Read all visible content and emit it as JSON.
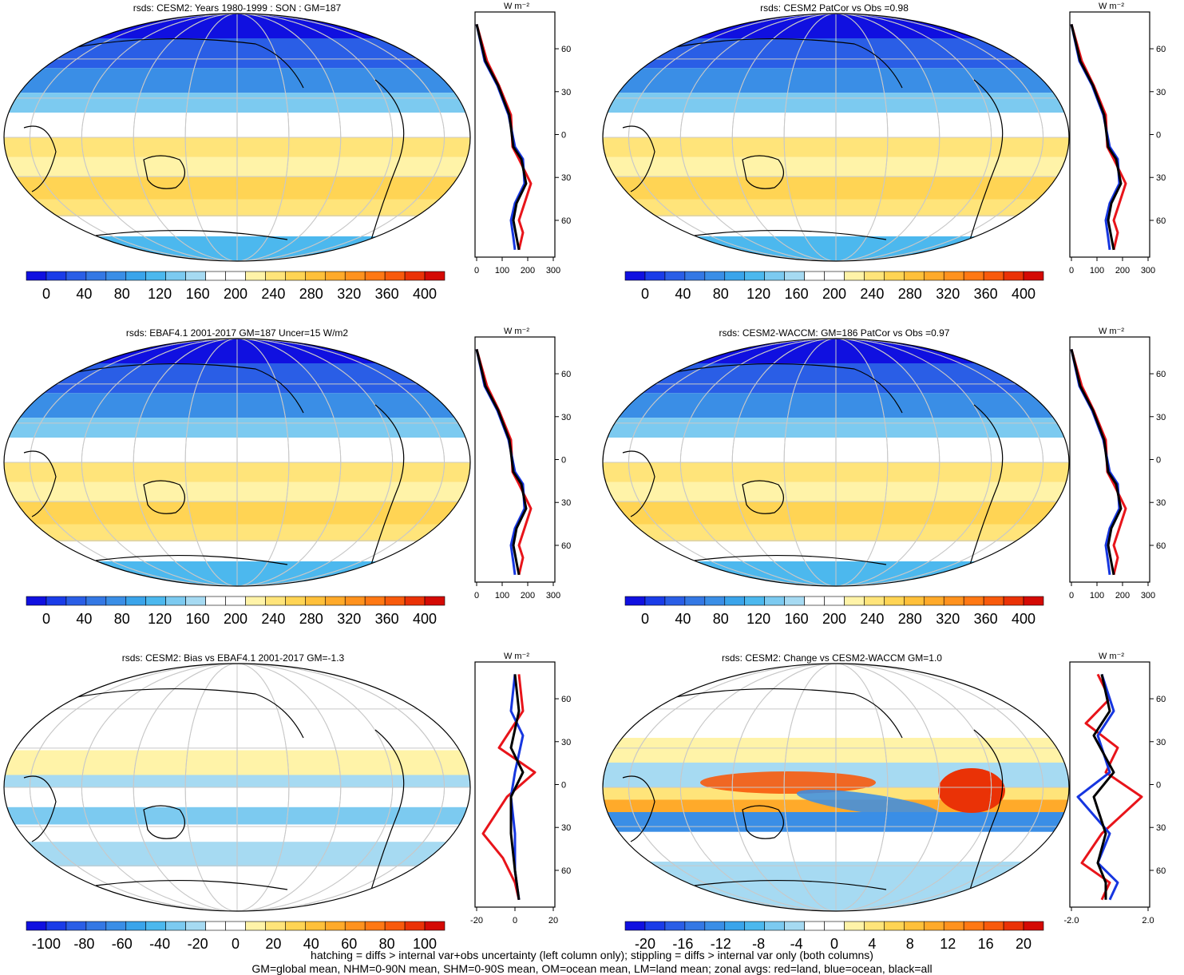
{
  "footer": {
    "line1": "hatching = diffs > internal var+obs uncertainty (left column only); stippling = diffs > internal var only (both columns)",
    "line2": "GM=global mean, NHM=0-90N mean, SHM=0-90S mean, OM=ocean mean, LM=land mean; zonal avgs: red=land, blue=ocean, black=all"
  },
  "zonal_axis": {
    "units": "W m⁻²",
    "lat_labels": [
      "60N",
      "30N",
      "0",
      "30S",
      "60S"
    ]
  },
  "panels": [
    {
      "title": "rsds: CESM2: Years 1980-1999 : SON : GM=187",
      "kind": "abs",
      "colorbar_labels": [
        "0",
        "40",
        "80",
        "120",
        "160",
        "200",
        "240",
        "280",
        "320",
        "360",
        "400"
      ],
      "zonal_ticks": [
        "0",
        "100",
        "200",
        "300"
      ]
    },
    {
      "title": "rsds: CESM2 PatCor vs Obs =0.98",
      "kind": "abs",
      "colorbar_labels": [
        "0",
        "40",
        "80",
        "120",
        "160",
        "200",
        "240",
        "280",
        "320",
        "360",
        "400"
      ],
      "zonal_ticks": [
        "0",
        "100",
        "200",
        "300"
      ]
    },
    {
      "title": "rsds: EBAF4.1 2001-2017 GM=187 Uncer=15 W/m2",
      "kind": "abs",
      "colorbar_labels": [
        "0",
        "40",
        "80",
        "120",
        "160",
        "200",
        "240",
        "280",
        "320",
        "360",
        "400"
      ],
      "zonal_ticks": [
        "0",
        "100",
        "200",
        "300"
      ]
    },
    {
      "title": "rsds: CESM2-WACCM: GM=186 PatCor vs Obs =0.97",
      "kind": "abs",
      "colorbar_labels": [
        "0",
        "40",
        "80",
        "120",
        "160",
        "200",
        "240",
        "280",
        "320",
        "360",
        "400"
      ],
      "zonal_ticks": [
        "0",
        "100",
        "200",
        "300"
      ]
    },
    {
      "title": "rsds: CESM2: Bias vs EBAF4.1 2001-2017  GM=-1.3",
      "kind": "bias",
      "colorbar_labels": [
        "-100",
        "-80",
        "-60",
        "-40",
        "-20",
        "0",
        "20",
        "40",
        "60",
        "80",
        "100"
      ],
      "zonal_ticks": [
        "-20",
        "0",
        "20"
      ]
    },
    {
      "title": "rsds: CESM2: Change vs CESM2-WACCM GM=1.0",
      "kind": "change",
      "colorbar_labels": [
        "-20",
        "-16",
        "-12",
        "-8",
        "-4",
        "0",
        "4",
        "8",
        "12",
        "16",
        "20"
      ],
      "zonal_ticks": [
        "-2.0",
        "2.0"
      ]
    }
  ],
  "colors": {
    "scale": [
      "#1010e0",
      "#1a3ce8",
      "#2a5ee6",
      "#3478e4",
      "#3a8ee6",
      "#3aa4ea",
      "#4cb8ee",
      "#7ccaf0",
      "#a6daf2",
      "#ffffff",
      "#ffffff",
      "#fff3a8",
      "#ffe47a",
      "#ffd454",
      "#ffc03a",
      "#ffaa2a",
      "#ff921e",
      "#ff7814",
      "#f85a0c",
      "#ea3206",
      "#d40a04"
    ],
    "land": "#e8141a",
    "ocean": "#1636e0",
    "all": "#000000",
    "grid": "#c8c8c8"
  }
}
